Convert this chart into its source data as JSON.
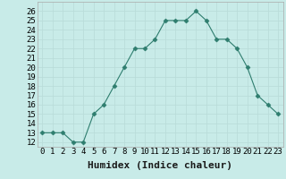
{
  "x": [
    0,
    1,
    2,
    3,
    4,
    5,
    6,
    7,
    8,
    9,
    10,
    11,
    12,
    13,
    14,
    15,
    16,
    17,
    18,
    19,
    20,
    21,
    22,
    23
  ],
  "y": [
    13,
    13,
    13,
    12,
    12,
    15,
    16,
    18,
    20,
    22,
    22,
    23,
    25,
    25,
    25,
    26,
    25,
    23,
    23,
    22,
    20,
    17,
    16,
    15
  ],
  "line_color": "#2e7d6e",
  "marker_color": "#2e7d6e",
  "bg_color": "#c8ebe8",
  "grid_color": "#b8dbd8",
  "xlabel": "Humidex (Indice chaleur)",
  "ylim": [
    11.5,
    27
  ],
  "xlim": [
    -0.5,
    23.5
  ],
  "yticks": [
    12,
    13,
    14,
    15,
    16,
    17,
    18,
    19,
    20,
    21,
    22,
    23,
    24,
    25,
    26
  ],
  "xtick_labels": [
    "0",
    "1",
    "2",
    "3",
    "4",
    "5",
    "6",
    "7",
    "8",
    "9",
    "10",
    "11",
    "12",
    "13",
    "14",
    "15",
    "16",
    "17",
    "18",
    "19",
    "20",
    "21",
    "22",
    "23"
  ],
  "tick_fontsize": 6.5,
  "label_fontsize": 8
}
